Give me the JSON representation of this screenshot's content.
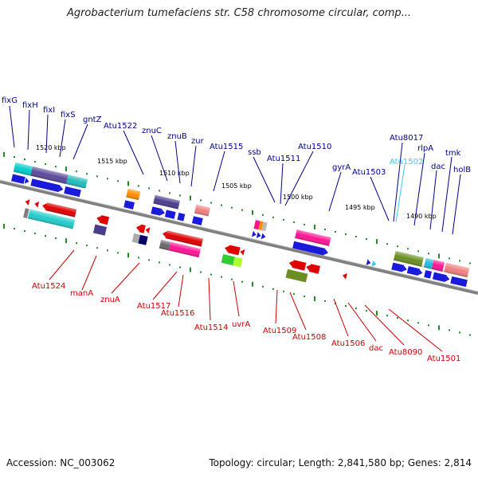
{
  "title": "Agrobacterium tumefaciens str. C58 chromosome circular, comp...",
  "footer": {
    "accession": "Accession: NC_003062",
    "summary": "Topology: circular; Length: 2,841,580 bp; Genes: 2,814"
  },
  "kbp_labels": [
    "1520 kbp",
    "1515 kbp",
    "1510 kbp",
    "1505 kbp",
    "1500 kbp",
    "1495 kbp",
    "1490 kbp"
  ],
  "forward_labels": [
    "fixG",
    "fixH",
    "fixI",
    "fixS",
    "gntZ",
    "Atu1522",
    "znuC",
    "znuB",
    "zur",
    "Atu1515",
    "ssb",
    "Atu1511",
    "Atu1510",
    "gyrA",
    "Atu1503",
    "Atu8017",
    "Atu1502",
    "rlpA",
    "dac",
    "tmk",
    "holB"
  ],
  "reverse_labels": [
    "Atu1524",
    "manA",
    "znuA",
    "Atu1517",
    "Atu1516",
    "Atu1514",
    "uvrA",
    "Atu1509",
    "Atu1508",
    "Atu1506",
    "dac",
    "Atu8090",
    "Atu1501"
  ],
  "colors": {
    "forward_label": "#00008b",
    "reverse_label": "#cc0000",
    "highlight_label": "#33ccee",
    "strand_line": "#808080",
    "tick": "#228b22"
  }
}
